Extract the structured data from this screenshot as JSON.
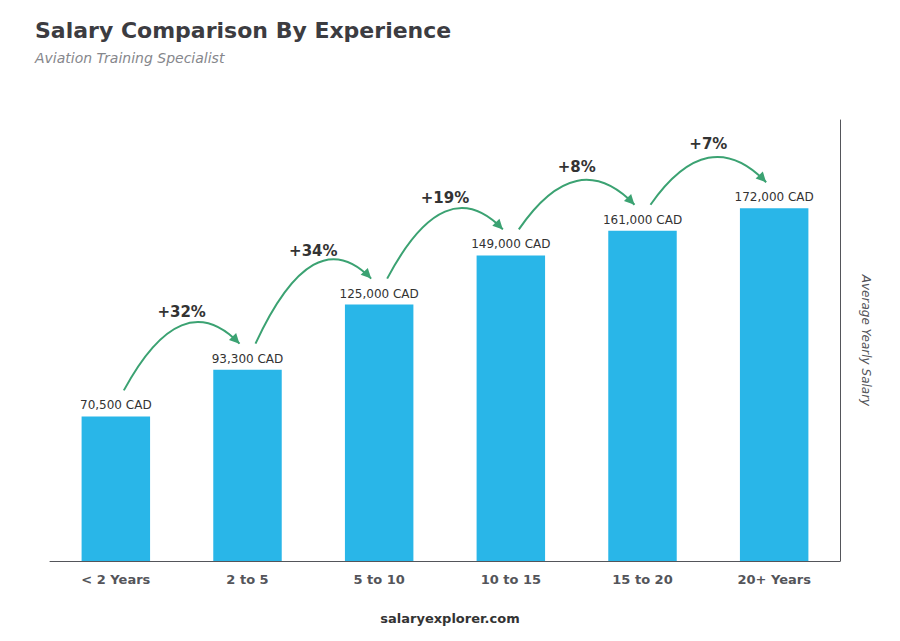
{
  "chart_data": {
    "type": "bar",
    "title": "Salary Comparison By Experience",
    "subtitle": "Aviation Training Specialist",
    "ylabel": "Average Yearly Salary",
    "categories": [
      "< 2 Years",
      "2 to 5",
      "5 to 10",
      "10 to 15",
      "15 to 20",
      "20+ Years"
    ],
    "values": [
      70500,
      93300,
      125000,
      149000,
      161000,
      172000
    ],
    "value_labels": [
      "70,500 CAD",
      "93,300 CAD",
      "125,000 CAD",
      "149,000 CAD",
      "161,000 CAD",
      "172,000 CAD"
    ],
    "data_labels": true,
    "color": "#29b6e8",
    "annotations": [
      "+32%",
      "+34%",
      "+19%",
      "+8%",
      "+7%"
    ],
    "footer": "salaryexplorer.com",
    "ylim": [
      0,
      215000
    ],
    "grid": false,
    "tick_labels": "x"
  }
}
